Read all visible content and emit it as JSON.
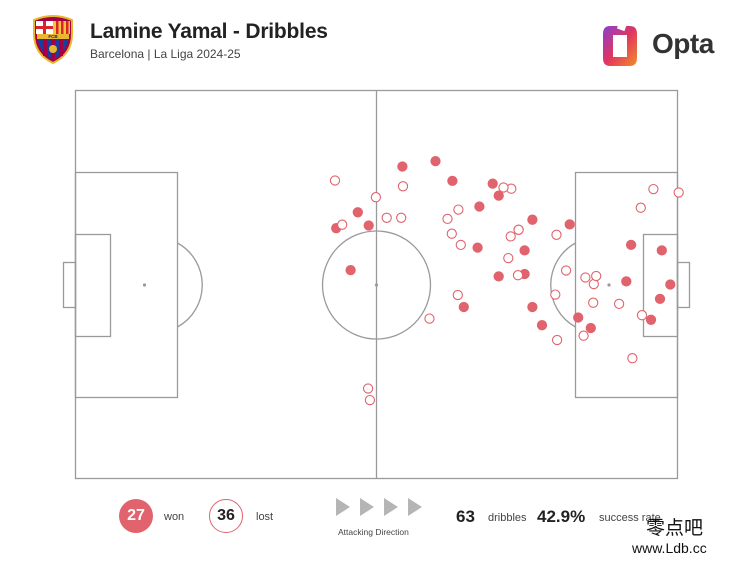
{
  "header": {
    "title": "Lamine Yamal - Dribbles",
    "subtitle": "Barcelona | La Liga 2024-25",
    "crest_letters": "FCB",
    "brand": "Opta"
  },
  "colors": {
    "won": "#e0636d",
    "lost_stroke": "#e0636d",
    "pitch_lines": "#9a9a9a",
    "arrows": "#b5b5b5"
  },
  "footer": {
    "won_count": "27",
    "won_label": "won",
    "lost_count": "36",
    "lost_label": "lost",
    "direction_label": "Attacking Direction",
    "dribbles_count": "63",
    "dribbles_label": "dribbles",
    "success_rate": "42.9%",
    "success_label": "success rate"
  },
  "watermark": {
    "cn": "零点吧",
    "url": "www.Ldb.cc"
  },
  "chart_data": {
    "type": "scatter",
    "title": "Lamine Yamal - Dribbles",
    "pitch": {
      "length": 100,
      "width": 100,
      "direction": "left-to-right"
    },
    "series": [
      {
        "name": "won",
        "style": "filled",
        "points": [
          [
            69.3,
            24
          ],
          [
            67.1,
            29.9
          ],
          [
            70.3,
            27.1
          ],
          [
            59.8,
            18.2
          ],
          [
            54.3,
            19.6
          ],
          [
            62.6,
            23.3
          ],
          [
            48.7,
            34.8
          ],
          [
            43.3,
            35.5
          ],
          [
            45.7,
            46.3
          ],
          [
            46.9,
            31.4
          ],
          [
            85.6,
            61.2
          ],
          [
            97.1,
            53.7
          ],
          [
            70.3,
            47.9
          ],
          [
            74.6,
            47.3
          ],
          [
            74.6,
            41.2
          ],
          [
            64.5,
            55.8
          ],
          [
            66.8,
            40.5
          ],
          [
            75.9,
            55.8
          ],
          [
            75.9,
            33.3
          ],
          [
            82.1,
            34.5
          ],
          [
            83.5,
            58.5
          ],
          [
            77.5,
            60.5
          ],
          [
            91.5,
            49.2
          ],
          [
            98.8,
            50.0
          ],
          [
            92.3,
            39.8
          ],
          [
            97.4,
            41.2
          ],
          [
            95.6,
            59.1
          ]
        ]
      },
      {
        "name": "lost",
        "style": "outline",
        "points": [
          [
            48.6,
            76.8
          ],
          [
            48.9,
            79.8
          ],
          [
            84.4,
            63.2
          ],
          [
            92.5,
            69.0
          ],
          [
            44.3,
            34.6
          ],
          [
            51.7,
            32.8
          ],
          [
            49.9,
            27.5
          ],
          [
            54.1,
            32.8
          ],
          [
            54.4,
            24.7
          ],
          [
            43.1,
            23.2
          ],
          [
            79.9,
            37.2
          ],
          [
            73.6,
            35.9
          ],
          [
            80.0,
            64.3
          ],
          [
            90.3,
            55.0
          ],
          [
            86.1,
            49.9
          ],
          [
            86.5,
            47.8
          ],
          [
            86.0,
            54.7
          ],
          [
            79.7,
            52.6
          ],
          [
            81.5,
            46.4
          ],
          [
            84.7,
            48.2
          ],
          [
            73.6,
            35.9
          ],
          [
            73.5,
            47.6
          ],
          [
            72.3,
            37.6
          ],
          [
            63.5,
            52.7
          ],
          [
            71.9,
            43.2
          ],
          [
            58.8,
            58.8
          ],
          [
            64.0,
            39.8
          ],
          [
            62.5,
            36.9
          ],
          [
            61.8,
            33.1
          ],
          [
            63.6,
            30.7
          ],
          [
            72.4,
            25.3
          ],
          [
            71.1,
            25.0
          ],
          [
            94.1,
            57.9
          ],
          [
            93.9,
            30.2
          ],
          [
            96.0,
            25.4
          ],
          [
            100.2,
            26.3
          ]
        ]
      }
    ]
  }
}
